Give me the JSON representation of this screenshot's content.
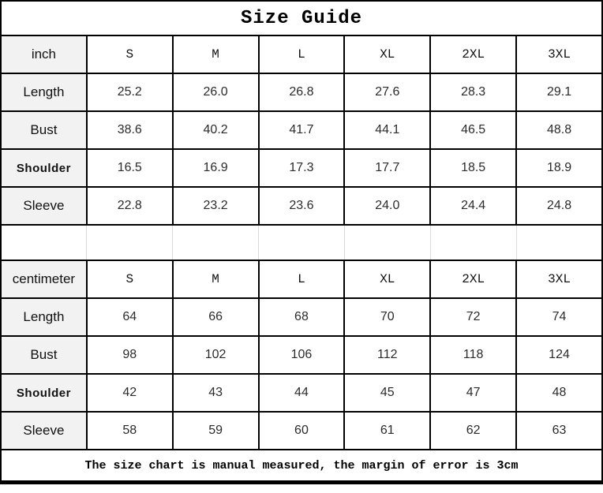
{
  "title": "Size Guide",
  "footer_note": "The size chart is manual measured, the margin of error is 3cm",
  "colors": {
    "border": "#000000",
    "label_column_bg": "#f2f2f2",
    "spacer_divider": "#d9d9d9",
    "value_text": "#2b2b2b"
  },
  "chart_data": {
    "type": "table",
    "title": "Size Guide",
    "size_columns": [
      "S",
      "M",
      "L",
      "XL",
      "2XL",
      "3XL"
    ],
    "tables": [
      {
        "unit": "inch",
        "rows": [
          {
            "label": "Length",
            "values": [
              "25.2",
              "26.0",
              "26.8",
              "27.6",
              "28.3",
              "29.1"
            ]
          },
          {
            "label": "Bust",
            "values": [
              "38.6",
              "40.2",
              "41.7",
              "44.1",
              "46.5",
              "48.8"
            ]
          },
          {
            "label": "Shoulder",
            "values": [
              "16.5",
              "16.9",
              "17.3",
              "17.7",
              "18.5",
              "18.9"
            ]
          },
          {
            "label": "Sleeve",
            "values": [
              "22.8",
              "23.2",
              "23.6",
              "24.0",
              "24.4",
              "24.8"
            ]
          }
        ]
      },
      {
        "unit": "centimeter",
        "rows": [
          {
            "label": "Length",
            "values": [
              "64",
              "66",
              "68",
              "70",
              "72",
              "74"
            ]
          },
          {
            "label": "Bust",
            "values": [
              "98",
              "102",
              "106",
              "112",
              "118",
              "124"
            ]
          },
          {
            "label": "Shoulder",
            "values": [
              "42",
              "43",
              "44",
              "45",
              "47",
              "48"
            ]
          },
          {
            "label": "Sleeve",
            "values": [
              "58",
              "59",
              "60",
              "61",
              "62",
              "63"
            ]
          }
        ]
      }
    ],
    "note": "The size chart is manual measured, the margin of error is 3cm"
  }
}
